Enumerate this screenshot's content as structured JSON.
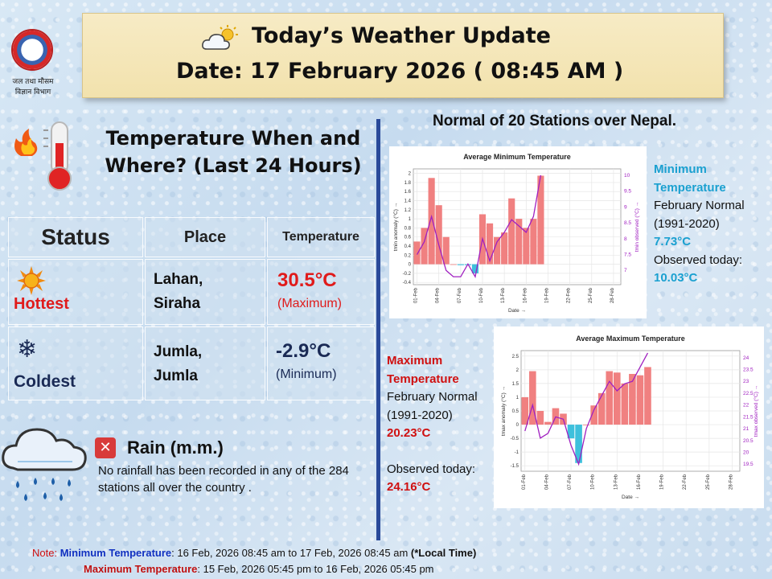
{
  "logo": {
    "line1": "जल तथा मौसम",
    "line2": "विज्ञान विभाग"
  },
  "header": {
    "title": "Today’s Weather Update",
    "date": "Date: 17 February 2026  ( 08:45 AM )"
  },
  "temperature_section": {
    "heading": "Temperature When and Where?  (Last 24 Hours)",
    "columns": [
      "Status",
      "Place",
      "Temperature"
    ],
    "rows": [
      {
        "status": "Hottest",
        "place_line1": "Lahan,",
        "place_line2": "Siraha",
        "value": "30.5°C",
        "note": "(Maximum)",
        "value_color": "#e01b1b"
      },
      {
        "status": "Coldest",
        "place_line1": "Jumla,",
        "place_line2": "Jumla",
        "value": "-2.9°C",
        "note": "(Minimum)",
        "value_color": "#1a2a55"
      }
    ]
  },
  "rain": {
    "title": "Rain  (m.m.)",
    "description": "No rainfall has been recorded in any of the 284 stations all over the country ."
  },
  "normal_heading": "Normal of 20 Stations over Nepal.",
  "min_info": {
    "label_line1": "Minimum",
    "label_line2": "Temperature",
    "normal_line1": "February Normal",
    "normal_line2": "(1991-2020)",
    "normal_value": "7.73°C",
    "observed_label": "Observed today:",
    "observed_value": "10.03°C"
  },
  "max_info": {
    "label_line1": "Maximum",
    "label_line2": "Temperature",
    "normal_line1": "February Normal",
    "normal_line2": "(1991-2020)",
    "normal_value": "20.23°C",
    "observed_label": "Observed today:",
    "observed_value": "24.16°C"
  },
  "note": {
    "prefix": "Note: ",
    "min_label": "Minimum Temperature",
    "min_range": ": 16 Feb, 2026  08:45 am  to 17 Feb, 2026  08:45 am ",
    "min_suffix": "(*Local Time)",
    "max_label": "Maximum Temperature",
    "max_range": ": 15 Feb, 2026  05:45 pm  to 16 Feb, 2026  05:45 pm"
  },
  "colors": {
    "anomaly_pos": "#f08080",
    "anomaly_neg": "#3ec0dc",
    "observed_line": "#a020c0"
  },
  "icons": [
    "weather-icon",
    "fire-icon",
    "thermometer-icon",
    "sun-icon",
    "snowflake-icon",
    "rain-cloud-icon",
    "close-icon"
  ],
  "chart_data": [
    {
      "type": "bar",
      "title": "Average Minimum Temperature",
      "xlabel": "Date →",
      "ylabel": "tmin anomaly (°C) →",
      "y2label": "tmin observed (°C) →",
      "ylim": [
        -0.45,
        2.1
      ],
      "y2lim": [
        6.55,
        10.2
      ],
      "yticks": [
        "-0.4",
        "-0.2",
        "0",
        "0.2",
        "0.4",
        "0.6",
        "0.8",
        "1",
        "1.2",
        "1.4",
        "1.6",
        "1.8",
        "2"
      ],
      "y2ticks": [
        "7",
        "7.5",
        "8",
        "8.5",
        "9",
        "9.5",
        "10"
      ],
      "xticks": [
        "01-Feb",
        "04-Feb",
        "07-Feb",
        "10-Feb",
        "13-Feb",
        "16-Feb",
        "19-Feb",
        "22-Feb",
        "25-Feb",
        "28-Feb"
      ],
      "days": 28,
      "anomaly": [
        0.5,
        0.8,
        1.9,
        1.3,
        0.6,
        0.0,
        -0.02,
        -0.02,
        -0.2,
        1.1,
        0.9,
        0.6,
        0.7,
        1.45,
        1.0,
        0.8,
        1.0,
        1.95
      ],
      "observed": [
        7.5,
        7.9,
        8.7,
        7.8,
        7.0,
        6.8,
        6.8,
        7.2,
        6.8,
        8.0,
        7.3,
        7.9,
        8.2,
        8.6,
        8.4,
        8.2,
        8.7,
        10.0
      ]
    },
    {
      "type": "bar",
      "title": "Average Maximum Temperature",
      "xlabel": "Date →",
      "ylabel": "tmax anomaly (°C) →",
      "y2label": "tmax observed (°C) →",
      "ylim": [
        -1.7,
        2.7
      ],
      "y2lim": [
        19.2,
        24.3
      ],
      "yticks": [
        "-1.5",
        "-1",
        "-0.5",
        "0",
        "0.5",
        "1",
        "1.5",
        "2",
        "2.5"
      ],
      "y2ticks": [
        "19.5",
        "20",
        "20.5",
        "21",
        "21.5",
        "22",
        "22.5",
        "23",
        "23.5",
        "24"
      ],
      "xticks": [
        "01-Feb",
        "04-Feb",
        "07-Feb",
        "10-Feb",
        "13-Feb",
        "16-Feb",
        "19-Feb",
        "22-Feb",
        "25-Feb",
        "28-Feb"
      ],
      "days": 28,
      "anomaly": [
        1.0,
        1.95,
        0.5,
        0.1,
        0.6,
        0.4,
        -0.5,
        -1.4,
        0.0,
        0.7,
        1.15,
        1.95,
        1.9,
        1.5,
        1.85,
        1.8,
        2.1
      ],
      "observed": [
        20.9,
        22.0,
        20.6,
        20.8,
        21.5,
        21.4,
        20.3,
        19.5,
        21.0,
        21.8,
        22.4,
        23.0,
        22.6,
        22.9,
        23.0,
        23.6,
        24.2
      ]
    }
  ]
}
